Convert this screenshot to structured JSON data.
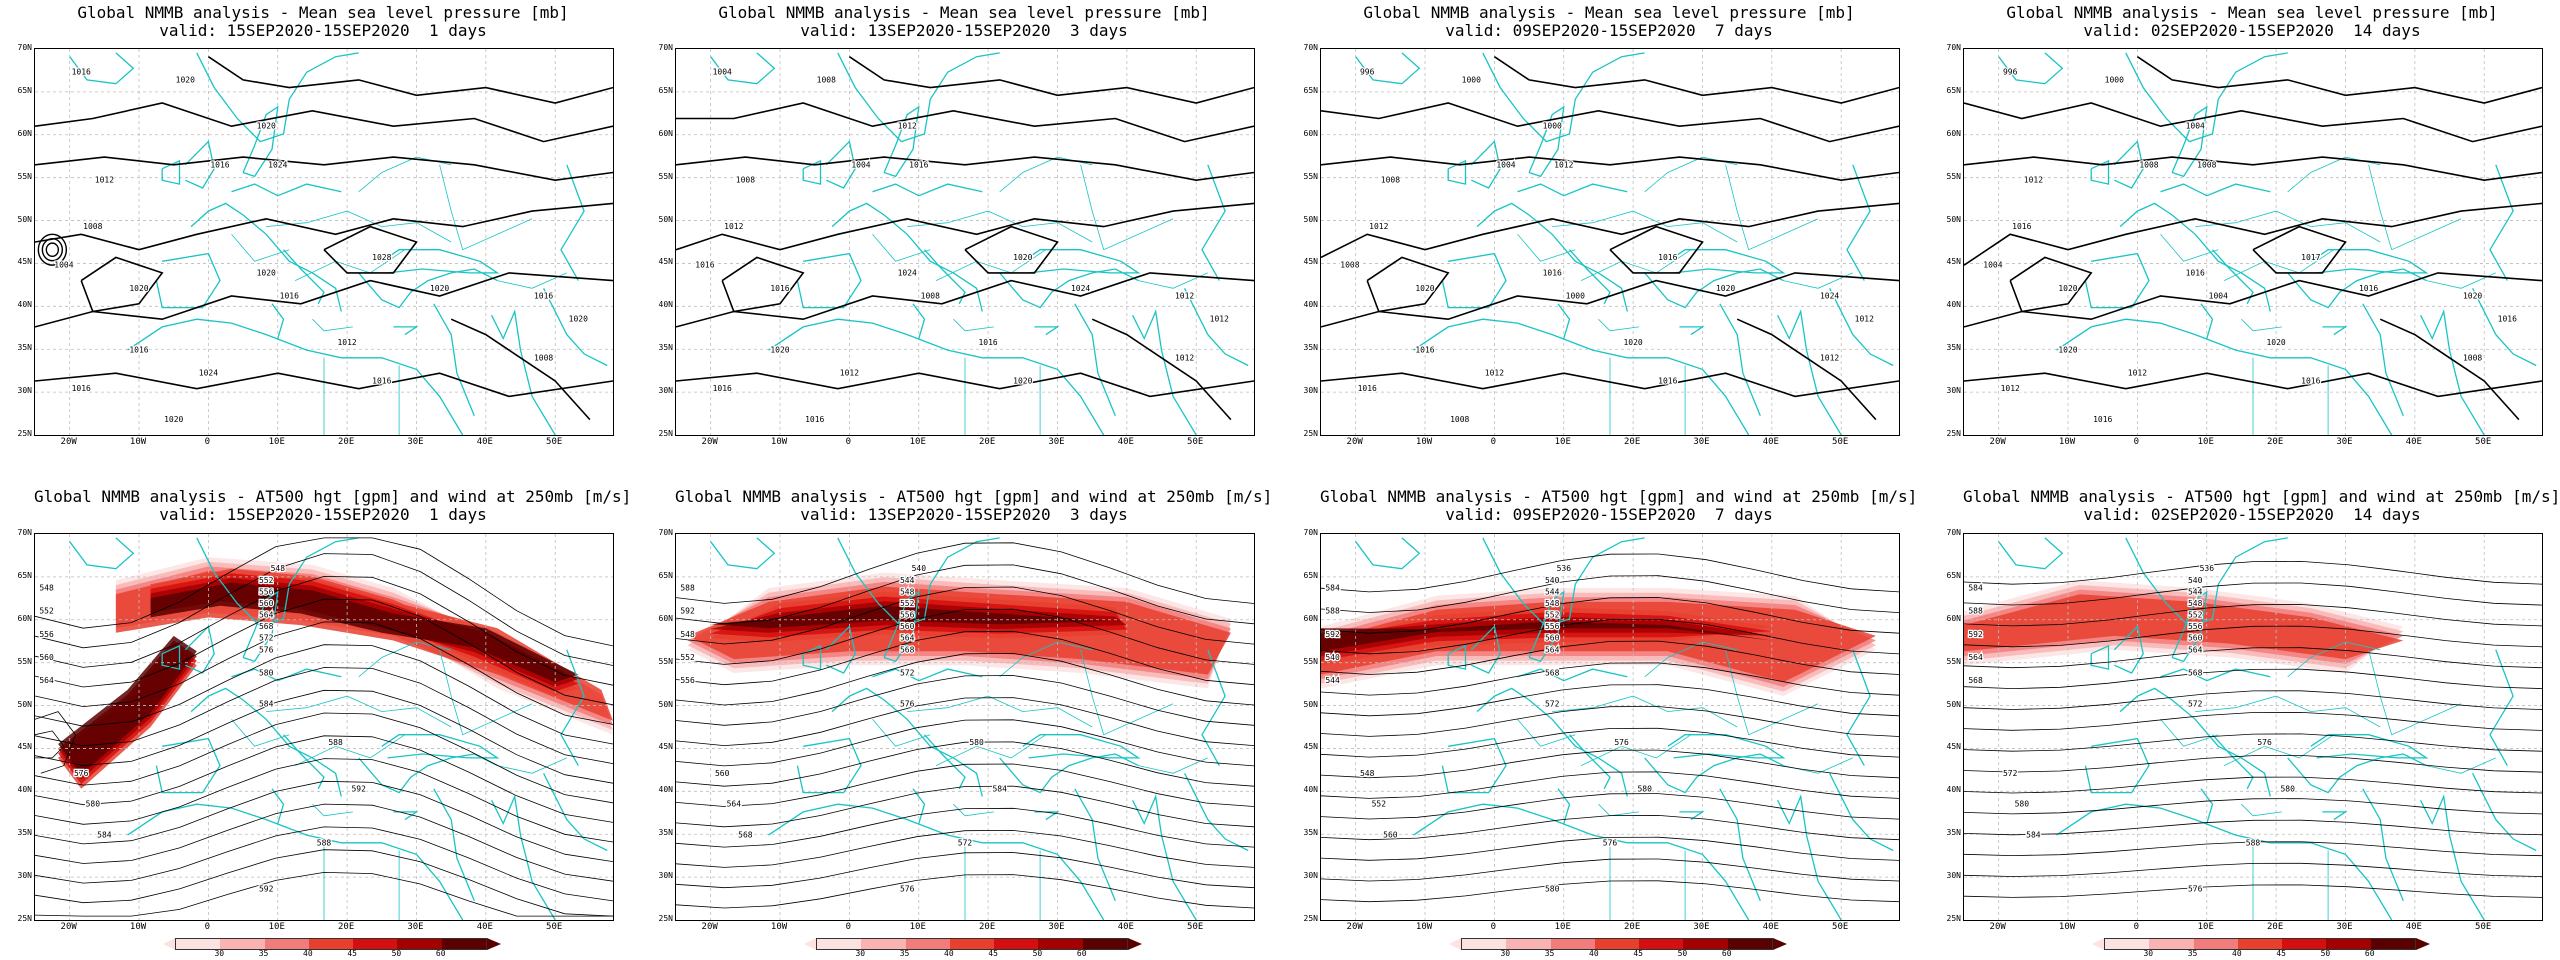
{
  "panels": [
    {
      "title": "Global NMMB analysis - Mean sea level pressure [mb]",
      "valid": "valid: 15SEP2020-15SEP2020  1 days",
      "labels": [
        "1016",
        "1020",
        "1020",
        "1016",
        "1012",
        "1008",
        "1004",
        "1024",
        "1028",
        "1020",
        "1016",
        "1020",
        "1020",
        "1016",
        "1012",
        "1016",
        "1020",
        "1016",
        "1024",
        "1008",
        "1020",
        "1016"
      ]
    },
    {
      "title": "Global NMMB analysis - Mean sea level pressure [mb]",
      "valid": "valid: 13SEP2020-15SEP2020  3 days",
      "labels": [
        "1004",
        "1008",
        "1012",
        "1004",
        "1008",
        "1012",
        "1016",
        "1016",
        "1020",
        "1024",
        "1012",
        "1016",
        "1024",
        "1020",
        "1016",
        "1020",
        "1012",
        "1016",
        "1012",
        "1012",
        "1016",
        "1008"
      ]
    },
    {
      "title": "Global NMMB analysis - Mean sea level pressure [mb]",
      "valid": "valid: 09SEP2020-15SEP2020  7 days",
      "labels": [
        "996",
        "1000",
        "1000",
        "1004",
        "1008",
        "1012",
        "1008",
        "1012",
        "1016",
        "1020",
        "1024",
        "1020",
        "1016",
        "1016",
        "1020",
        "1016",
        "1012",
        "1016",
        "1012",
        "1012",
        "1008",
        "1000"
      ]
    },
    {
      "title": "Global NMMB analysis - Mean sea level pressure [mb]",
      "valid": "valid: 02SEP2020-15SEP2020  14 days",
      "labels": [
        "996",
        "1000",
        "1004",
        "1008",
        "1012",
        "1016",
        "1004",
        "1008",
        "1017",
        "1016",
        "1020",
        "1020",
        "1016",
        "1020",
        "1020",
        "1016",
        "1016",
        "1012",
        "1012",
        "1008",
        "1016",
        "1004"
      ]
    },
    {
      "title": "Global NMMB analysis - AT500 hgt [gpm] and wind at 250mb [m/s]",
      "valid": "valid: 15SEP2020-15SEP2020  1 days",
      "labels": [
        "548",
        "552",
        "556",
        "560",
        "564",
        "568",
        "572",
        "576",
        "580",
        "584",
        "588",
        "592",
        "548",
        "552",
        "556",
        "560",
        "564",
        "576",
        "580",
        "584",
        "588",
        "592"
      ]
    },
    {
      "title": "Global NMMB analysis - AT500 hgt [gpm] and wind at 250mb [m/s]",
      "valid": "valid: 13SEP2020-15SEP2020  3 days",
      "labels": [
        "540",
        "544",
        "548",
        "552",
        "556",
        "560",
        "564",
        "568",
        "572",
        "576",
        "580",
        "584",
        "588",
        "592",
        "548",
        "552",
        "556",
        "560",
        "564",
        "568",
        "572",
        "576"
      ]
    },
    {
      "title": "Global NMMB analysis - AT500 hgt [gpm] and wind at 250mb [m/s]",
      "valid": "valid: 09SEP2020-15SEP2020  7 days",
      "labels": [
        "536",
        "540",
        "544",
        "548",
        "552",
        "556",
        "560",
        "564",
        "568",
        "572",
        "576",
        "580",
        "584",
        "588",
        "592",
        "540",
        "544",
        "548",
        "552",
        "560",
        "576",
        "580"
      ]
    },
    {
      "title": "Global NMMB analysis - AT500 hgt [gpm] and wind at 250mb [m/s]",
      "valid": "valid: 02SEP2020-15SEP2020  14 days",
      "labels": [
        "536",
        "540",
        "544",
        "548",
        "552",
        "556",
        "560",
        "564",
        "568",
        "572",
        "576",
        "580",
        "584",
        "588",
        "592",
        "564",
        "568",
        "572",
        "580",
        "584",
        "588",
        "576"
      ]
    }
  ],
  "lat_labels": [
    "70N",
    "65N",
    "60N",
    "55N",
    "50N",
    "45N",
    "40N",
    "35N",
    "30N",
    "25N"
  ],
  "lon_labels": [
    "20W",
    "10W",
    "0",
    "10E",
    "20E",
    "30E",
    "40E",
    "50E"
  ],
  "colorbar_ticks": [
    "30",
    "35",
    "40",
    "45",
    "50",
    "60"
  ],
  "colors": {
    "coast": "#19c4c4",
    "contour": "#000000",
    "grid": "#bdbdbd",
    "wind": [
      "#fde2e2",
      "#f9b3b3",
      "#f27c7c",
      "#e8402f",
      "#d40f0f",
      "#a30000",
      "#5a0000"
    ]
  }
}
